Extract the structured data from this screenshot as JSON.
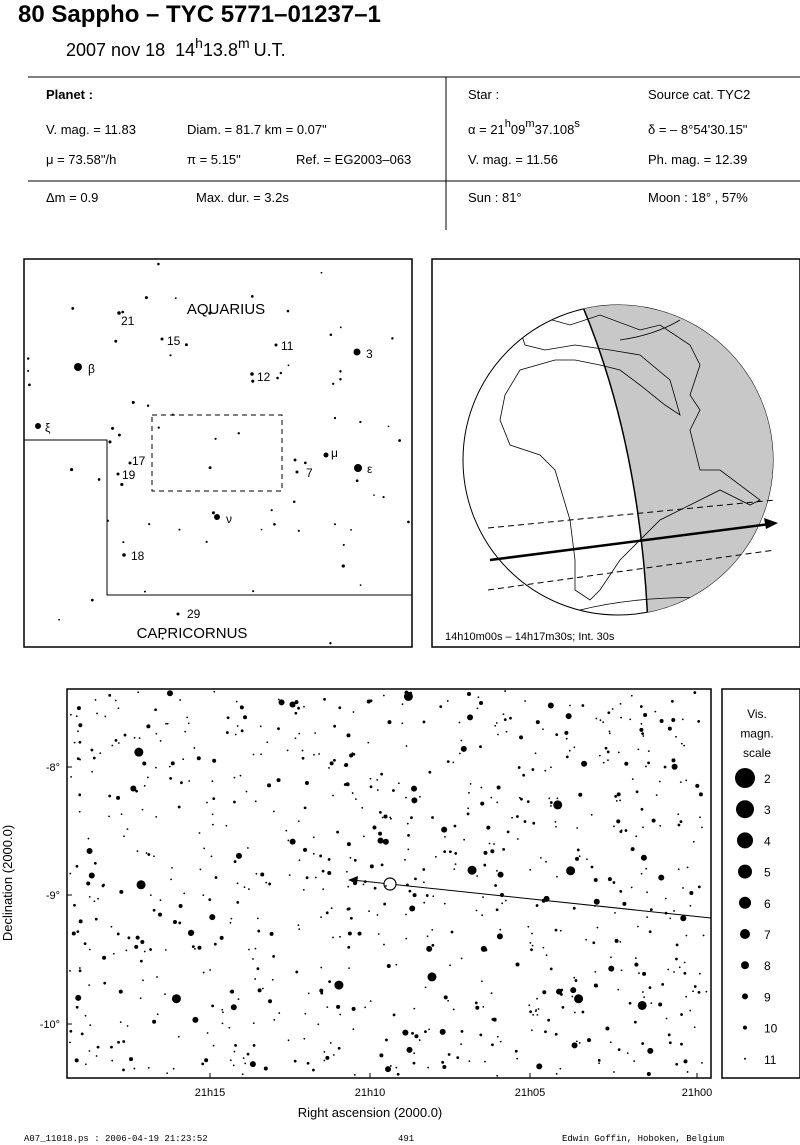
{
  "header": {
    "title": "80 Sappho  –  TYC 5771–01237–1",
    "date": "2007 nov 18",
    "hour": "14",
    "hour_unit": "h",
    "minute": "13.8",
    "minute_unit": "m",
    "timescale": "U.T."
  },
  "planet": {
    "label": "Planet :",
    "vmag": "V. mag. = 11.83",
    "diameter": "Diam. = 81.7 km = 0.07\"",
    "motion": "μ =  73.58\"/h",
    "parallax": "π =  5.15\"",
    "reference": "Ref. = EG2003–063"
  },
  "star": {
    "label": "Star :",
    "source": "Source cat.  TYC2",
    "ra_prefix": "α = 21",
    "ra_h": "h",
    "ra_min": "09",
    "ra_m": "m",
    "ra_sec": "37.108",
    "ra_s": "s",
    "dec": "δ = – 8°54'30.15\"",
    "vmag": "V. mag. = 11.56",
    "phmag": "Ph. mag. = 12.39"
  },
  "event": {
    "delta_mag": "Δm = 0.9",
    "max_duration": "Max. dur. = 3.2s",
    "sun": "Sun :  81°",
    "moon": "Moon :  18° , 57%"
  },
  "finder": {
    "constellations": [
      "AQUARIUS",
      "CAPRICORNUS"
    ],
    "labels": [
      "21",
      "15",
      "11",
      "3",
      "12",
      "β",
      "ξ",
      "17",
      "19",
      "μ",
      "7",
      "ε",
      "ν",
      "18",
      "29"
    ]
  },
  "globe": {
    "caption": "14h10m00s – 14h17m30s; Int. 30s"
  },
  "star_chart": {
    "x_label": "Right ascension (2000.0)",
    "y_label": "Declination (2000.0)",
    "x_ticks": [
      "21h15",
      "21h10",
      "21h05",
      "21h00"
    ],
    "y_ticks": [
      "-8°",
      "-9°",
      "-10°"
    ],
    "scale_title": [
      "Vis.",
      "magn.",
      "scale"
    ],
    "scale_magnitudes": [
      2,
      3,
      4,
      5,
      6,
      7,
      8,
      9,
      10,
      11
    ]
  },
  "footer": {
    "file": "A07_11018.ps : 2006-04-19 21:23:52",
    "page": "491",
    "author": "Edwin Goffin, Hoboken, Belgium"
  }
}
